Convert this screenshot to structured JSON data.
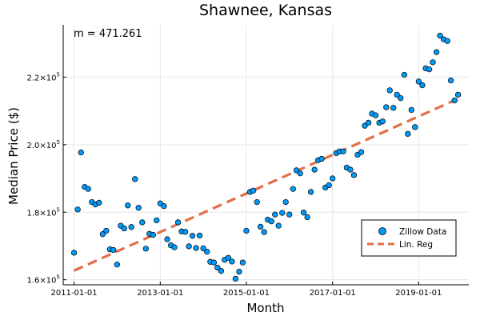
{
  "chart_data": {
    "type": "scatter",
    "title": "Shawnee, Kansas",
    "xlabel": "Month",
    "ylabel": "Median Price ($)",
    "annotation": "m = 471.261",
    "x_axis": {
      "type": "date",
      "ticks": [
        "2011-01-01",
        "2013-01-01",
        "2015-01-01",
        "2017-01-01",
        "2019-01-01"
      ],
      "range": [
        "2010-10-01",
        "2020-03-01"
      ]
    },
    "y_axis": {
      "ticks": [
        160000,
        180000,
        200000,
        220000
      ],
      "tick_mantissas": [
        "1.6",
        "1.8",
        "2.0",
        "2.2"
      ],
      "tick_base": "×10",
      "tick_exponent": "5",
      "range": [
        158500,
        235500
      ]
    },
    "grid": true,
    "legend": {
      "placement": "bottom-right",
      "entries": [
        {
          "label": "Zillow Data",
          "kind": "marker",
          "color": "#009af9"
        },
        {
          "label": "Lin. Reg",
          "kind": "dashed-line",
          "color": "#e26f46"
        }
      ]
    },
    "series": [
      {
        "name": "Zillow Data",
        "color": "#009af9",
        "points": [
          [
            "2011-01-01",
            168000
          ],
          [
            "2011-02-01",
            180800
          ],
          [
            "2011-03-01",
            197700
          ],
          [
            "2011-04-01",
            187500
          ],
          [
            "2011-05-01",
            186900
          ],
          [
            "2011-06-01",
            183000
          ],
          [
            "2011-07-01",
            182300
          ],
          [
            "2011-08-01",
            182800
          ],
          [
            "2011-09-01",
            173500
          ],
          [
            "2011-10-01",
            174500
          ],
          [
            "2011-11-01",
            169000
          ],
          [
            "2011-12-01",
            168800
          ],
          [
            "2012-01-01",
            164500
          ],
          [
            "2012-02-01",
            176000
          ],
          [
            "2012-03-01",
            175200
          ],
          [
            "2012-04-01",
            182000
          ],
          [
            "2012-05-01",
            175600
          ],
          [
            "2012-06-01",
            189800
          ],
          [
            "2012-07-01",
            181300
          ],
          [
            "2012-08-01",
            177000
          ],
          [
            "2012-09-01",
            169200
          ],
          [
            "2012-10-01",
            173600
          ],
          [
            "2012-11-01",
            173300
          ],
          [
            "2012-12-01",
            177600
          ],
          [
            "2013-01-01",
            182600
          ],
          [
            "2013-02-01",
            181800
          ],
          [
            "2013-03-01",
            172000
          ],
          [
            "2013-04-01",
            170200
          ],
          [
            "2013-05-01",
            169600
          ],
          [
            "2013-06-01",
            177000
          ],
          [
            "2013-07-01",
            174300
          ],
          [
            "2013-08-01",
            174200
          ],
          [
            "2013-09-01",
            169900
          ],
          [
            "2013-10-01",
            173000
          ],
          [
            "2013-11-01",
            169400
          ],
          [
            "2013-12-01",
            173100
          ],
          [
            "2014-01-01",
            169300
          ],
          [
            "2014-02-01",
            168300
          ],
          [
            "2014-03-01",
            165300
          ],
          [
            "2014-04-01",
            165100
          ],
          [
            "2014-05-01",
            163600
          ],
          [
            "2014-06-01",
            162600
          ],
          [
            "2014-07-01",
            165900
          ],
          [
            "2014-08-01",
            166500
          ],
          [
            "2014-09-01",
            165400
          ],
          [
            "2014-10-01",
            160300
          ],
          [
            "2014-11-01",
            162400
          ],
          [
            "2014-12-01",
            165100
          ],
          [
            "2015-01-01",
            174500
          ],
          [
            "2015-02-01",
            186000
          ],
          [
            "2015-03-01",
            186400
          ],
          [
            "2015-04-01",
            183000
          ],
          [
            "2015-05-01",
            175700
          ],
          [
            "2015-06-01",
            174100
          ],
          [
            "2015-07-01",
            177800
          ],
          [
            "2015-08-01",
            177300
          ],
          [
            "2015-09-01",
            179300
          ],
          [
            "2015-10-01",
            176000
          ],
          [
            "2015-11-01",
            179800
          ],
          [
            "2015-12-01",
            183000
          ],
          [
            "2016-01-01",
            179300
          ],
          [
            "2016-02-01",
            186900
          ],
          [
            "2016-03-01",
            192400
          ],
          [
            "2016-04-01",
            191500
          ],
          [
            "2016-05-01",
            179900
          ],
          [
            "2016-06-01",
            178500
          ],
          [
            "2016-07-01",
            186000
          ],
          [
            "2016-08-01",
            192600
          ],
          [
            "2016-09-01",
            195400
          ],
          [
            "2016-10-01",
            195800
          ],
          [
            "2016-11-01",
            187300
          ],
          [
            "2016-12-01",
            188000
          ],
          [
            "2017-01-01",
            190000
          ],
          [
            "2017-02-01",
            197500
          ],
          [
            "2017-03-01",
            198000
          ],
          [
            "2017-04-01",
            198000
          ],
          [
            "2017-05-01",
            193200
          ],
          [
            "2017-06-01",
            192600
          ],
          [
            "2017-07-01",
            191000
          ],
          [
            "2017-08-01",
            197000
          ],
          [
            "2017-09-01",
            197800
          ],
          [
            "2017-10-01",
            205600
          ],
          [
            "2017-11-01",
            206500
          ],
          [
            "2017-12-01",
            209200
          ],
          [
            "2018-01-01",
            208700
          ],
          [
            "2018-02-01",
            206500
          ],
          [
            "2018-03-01",
            206900
          ],
          [
            "2018-04-01",
            211100
          ],
          [
            "2018-05-01",
            216100
          ],
          [
            "2018-06-01",
            210900
          ],
          [
            "2018-07-01",
            214800
          ],
          [
            "2018-08-01",
            213800
          ],
          [
            "2018-09-01",
            220700
          ],
          [
            "2018-10-01",
            203200
          ],
          [
            "2018-11-01",
            210300
          ],
          [
            "2018-12-01",
            205200
          ],
          [
            "2019-01-01",
            218700
          ],
          [
            "2019-02-01",
            217600
          ],
          [
            "2019-03-01",
            222600
          ],
          [
            "2019-04-01",
            222300
          ],
          [
            "2019-05-01",
            224400
          ],
          [
            "2019-06-01",
            227400
          ],
          [
            "2019-07-01",
            232300
          ],
          [
            "2019-08-01",
            231200
          ],
          [
            "2019-09-01",
            230700
          ],
          [
            "2019-10-01",
            219000
          ],
          [
            "2019-11-01",
            213100
          ],
          [
            "2019-12-01",
            214800
          ]
        ]
      },
      {
        "name": "Lin. Reg",
        "type": "line",
        "style": "dashed",
        "color": "#e26f46",
        "points": [
          [
            "2011-01-01",
            162700
          ],
          [
            "2019-12-01",
            213600
          ]
        ]
      }
    ]
  }
}
